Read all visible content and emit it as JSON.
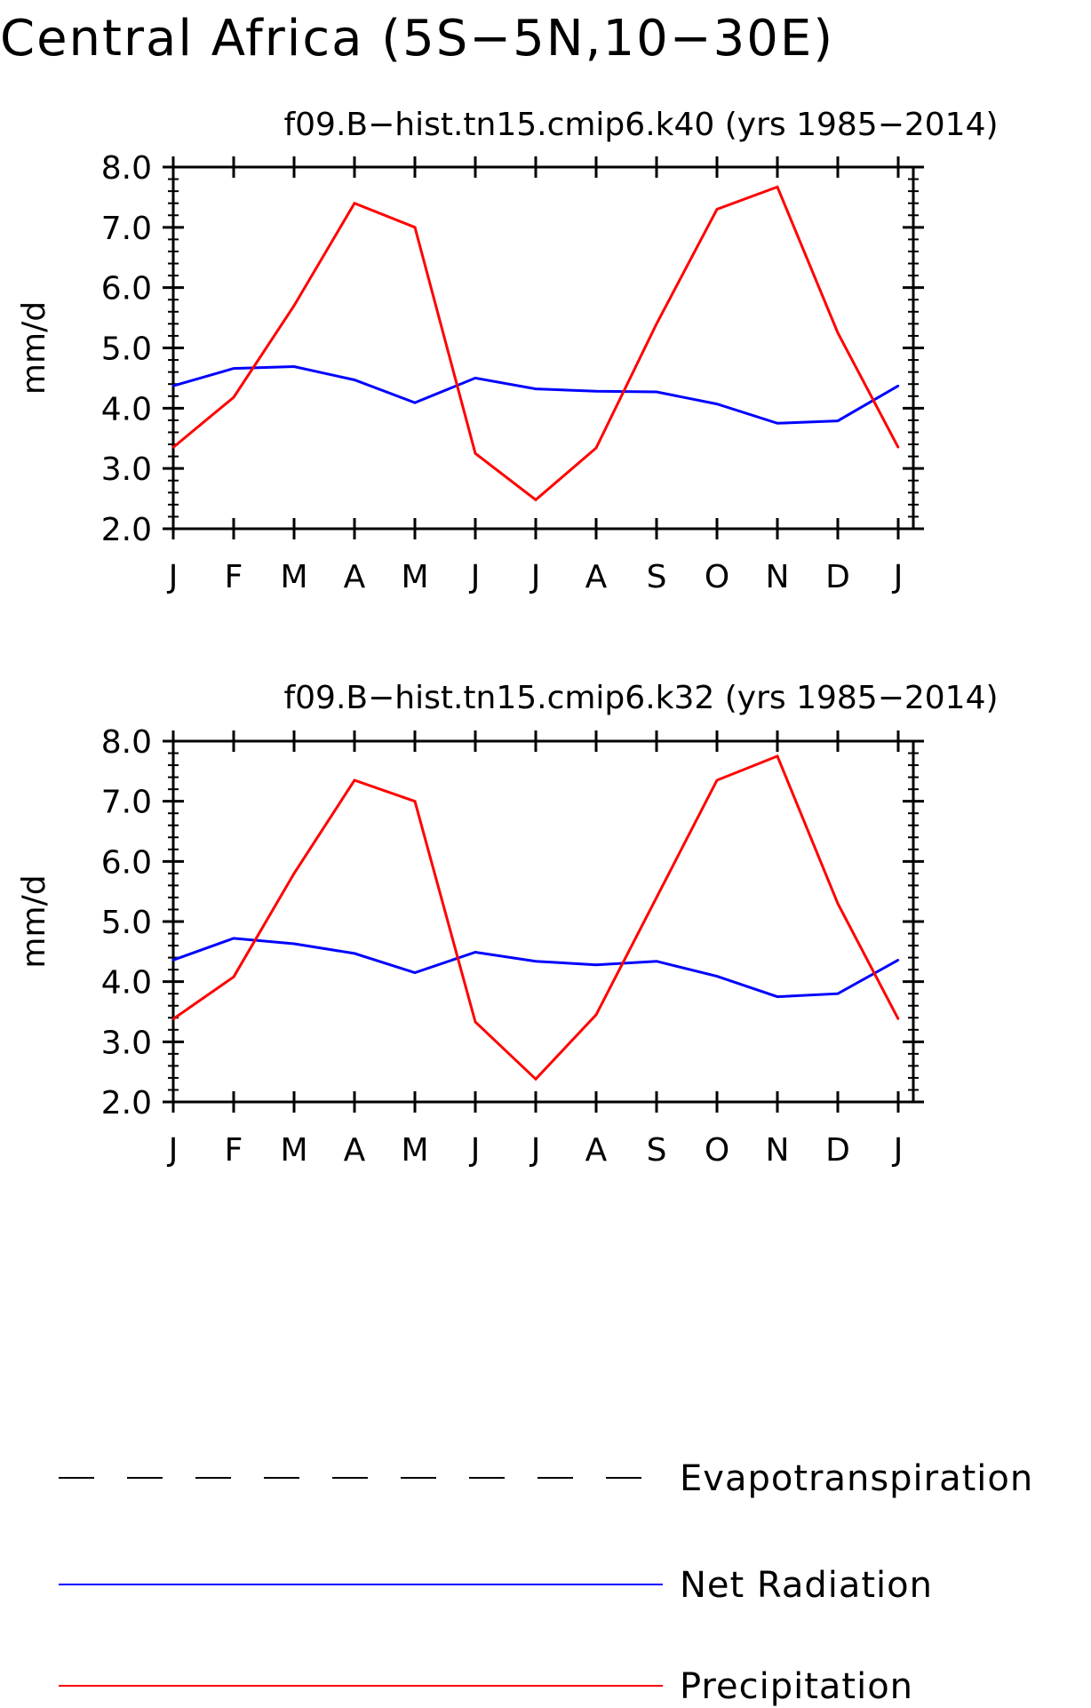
{
  "title": "Central Africa (5S−5N,10−30E)",
  "legend": [
    {
      "label": "Evapotranspiration",
      "color": "#000000",
      "style": "dashed"
    },
    {
      "label": "Net Radiation",
      "color": "#0000ff",
      "style": "solid"
    },
    {
      "label": "Precipitation",
      "color": "#ff0000",
      "style": "solid"
    }
  ],
  "chart_data": [
    {
      "type": "line",
      "title": "f09.B−hist.tn15.cmip6.k40 (yrs 1985−2014)",
      "xlabel": "",
      "ylabel": "mm/d",
      "categories": [
        "J",
        "F",
        "M",
        "A",
        "M",
        "J",
        "J",
        "A",
        "S",
        "O",
        "N",
        "D",
        "J"
      ],
      "ylim": [
        2.0,
        8.0
      ],
      "yticks": [
        "2.0",
        "3.0",
        "4.0",
        "5.0",
        "6.0",
        "7.0",
        "8.0"
      ],
      "grid": false,
      "series": [
        {
          "name": "Net Radiation",
          "color": "#0000ff",
          "values": [
            4.37,
            4.66,
            4.69,
            4.47,
            4.09,
            4.5,
            4.32,
            4.28,
            4.27,
            4.07,
            3.75,
            3.79,
            4.37
          ]
        },
        {
          "name": "Precipitation",
          "color": "#ff0000",
          "values": [
            3.35,
            4.18,
            5.7,
            7.4,
            7.0,
            3.25,
            2.48,
            3.34,
            5.4,
            7.3,
            7.67,
            5.25,
            3.35
          ]
        }
      ]
    },
    {
      "type": "line",
      "title": "f09.B−hist.tn15.cmip6.k32 (yrs 1985−2014)",
      "xlabel": "",
      "ylabel": "mm/d",
      "categories": [
        "J",
        "F",
        "M",
        "A",
        "M",
        "J",
        "J",
        "A",
        "S",
        "O",
        "N",
        "D",
        "J"
      ],
      "ylim": [
        2.0,
        8.0
      ],
      "yticks": [
        "2.0",
        "3.0",
        "4.0",
        "5.0",
        "6.0",
        "7.0",
        "8.0"
      ],
      "grid": false,
      "series": [
        {
          "name": "Net Radiation",
          "color": "#0000ff",
          "values": [
            4.36,
            4.72,
            4.63,
            4.47,
            4.15,
            4.49,
            4.34,
            4.28,
            4.34,
            4.09,
            3.75,
            3.8,
            4.36
          ]
        },
        {
          "name": "Precipitation",
          "color": "#ff0000",
          "values": [
            3.38,
            4.08,
            5.8,
            7.35,
            7.0,
            3.33,
            2.38,
            3.45,
            5.4,
            7.35,
            7.75,
            5.3,
            3.38
          ]
        }
      ]
    }
  ]
}
